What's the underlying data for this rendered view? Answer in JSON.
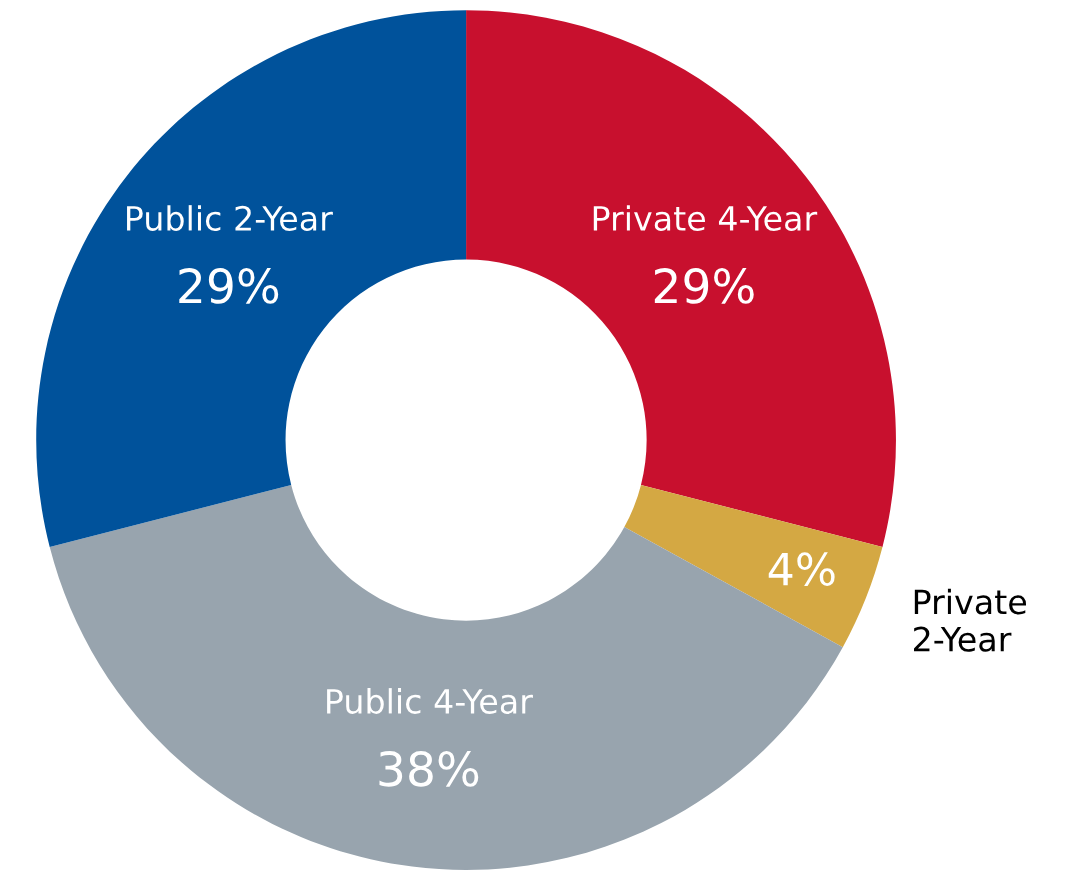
{
  "chart_data": {
    "type": "donut",
    "categories": [
      "Private 4-Year",
      "Private 2-Year",
      "Public 4-Year",
      "Public 2-Year"
    ],
    "values": [
      29,
      4,
      38,
      29
    ],
    "colors": [
      "#c8102e",
      "#d4a843",
      "#98a4ae",
      "#00529b"
    ],
    "value_labels": [
      "29%",
      "4%",
      "38%",
      "29%"
    ]
  }
}
